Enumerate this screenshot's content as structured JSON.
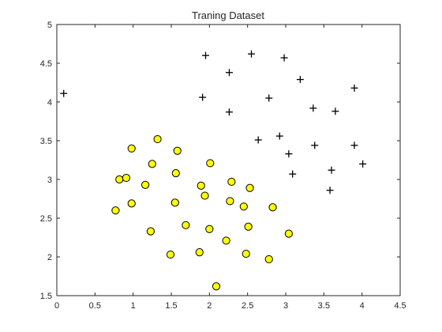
{
  "chart_data": {
    "type": "scatter",
    "title": "Traning Dataset",
    "xlabel": "",
    "ylabel": "",
    "xlim": [
      0,
      4.5
    ],
    "ylim": [
      1.5,
      5
    ],
    "xticks": [
      "0",
      "0.5",
      "1",
      "1.5",
      "2",
      "2.5",
      "3",
      "3.5",
      "4",
      "4.5"
    ],
    "yticks": [
      "1.5",
      "2",
      "2.5",
      "3",
      "3.5",
      "4",
      "4.5",
      "5"
    ],
    "xtick_values": [
      0,
      0.5,
      1,
      1.5,
      2,
      2.5,
      3,
      3.5,
      4,
      4.5
    ],
    "ytick_values": [
      1.5,
      2,
      2.5,
      3,
      3.5,
      4,
      4.5,
      5
    ],
    "grid": false,
    "legend": "none",
    "series": [
      {
        "marker": "plus",
        "color": "#000000",
        "points": [
          [
            0.09,
            4.11
          ],
          [
            1.95,
            4.6
          ],
          [
            2.55,
            4.62
          ],
          [
            2.98,
            4.57
          ],
          [
            2.26,
            4.38
          ],
          [
            3.19,
            4.29
          ],
          [
            1.91,
            4.06
          ],
          [
            2.78,
            4.05
          ],
          [
            3.9,
            4.18
          ],
          [
            2.26,
            3.87
          ],
          [
            3.36,
            3.92
          ],
          [
            3.65,
            3.88
          ],
          [
            2.64,
            3.51
          ],
          [
            2.92,
            3.56
          ],
          [
            3.38,
            3.44
          ],
          [
            3.9,
            3.44
          ],
          [
            3.04,
            3.33
          ],
          [
            4.01,
            3.2
          ],
          [
            3.09,
            3.07
          ],
          [
            3.6,
            3.12
          ],
          [
            3.58,
            2.86
          ]
        ]
      },
      {
        "marker": "circle",
        "color": "#ffff00",
        "edge_color": "#000000",
        "points": [
          [
            1.32,
            3.52
          ],
          [
            0.98,
            3.4
          ],
          [
            1.58,
            3.37
          ],
          [
            1.25,
            3.2
          ],
          [
            2.01,
            3.21
          ],
          [
            1.56,
            3.08
          ],
          [
            0.82,
            3.0
          ],
          [
            0.91,
            3.02
          ],
          [
            1.16,
            2.93
          ],
          [
            1.89,
            2.92
          ],
          [
            2.29,
            2.97
          ],
          [
            2.53,
            2.89
          ],
          [
            1.94,
            2.79
          ],
          [
            0.98,
            2.69
          ],
          [
            1.55,
            2.7
          ],
          [
            2.27,
            2.72
          ],
          [
            2.45,
            2.65
          ],
          [
            2.83,
            2.64
          ],
          [
            0.77,
            2.6
          ],
          [
            1.69,
            2.41
          ],
          [
            2.0,
            2.36
          ],
          [
            2.51,
            2.39
          ],
          [
            1.23,
            2.33
          ],
          [
            3.04,
            2.3
          ],
          [
            2.22,
            2.21
          ],
          [
            1.49,
            2.03
          ],
          [
            1.87,
            2.06
          ],
          [
            2.48,
            2.04
          ],
          [
            2.78,
            1.97
          ],
          [
            2.09,
            1.62
          ]
        ]
      }
    ]
  }
}
